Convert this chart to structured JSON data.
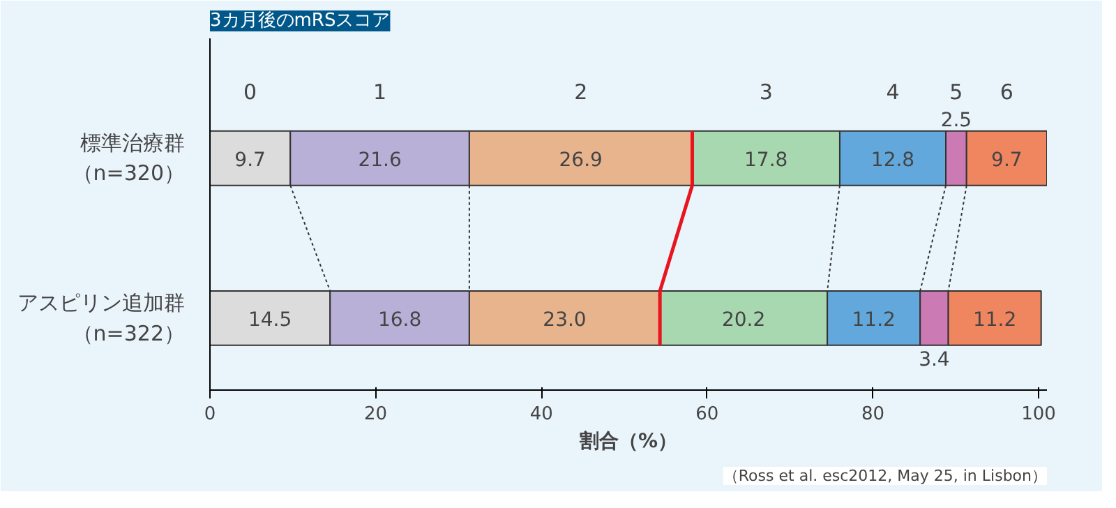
{
  "chart_data": {
    "type": "bar",
    "orientation": "horizontal",
    "stacked": true,
    "title": "3カ月後のmRSスコア",
    "xlabel": "割合（%）",
    "categories": [
      "標準治療群（n=320）",
      "アスピリン追加群（n=322）"
    ],
    "legend": false,
    "series": [
      {
        "name": "0",
        "color": "#dcdcdc",
        "values": [
          9.7,
          14.5
        ],
        "value_labels": [
          "9.7",
          "14.5"
        ]
      },
      {
        "name": "1",
        "color": "#b9b0d8",
        "values": [
          21.6,
          16.8
        ],
        "value_labels": [
          "21.6",
          "16.8"
        ]
      },
      {
        "name": "2",
        "color": "#e8b48e",
        "values": [
          26.9,
          23.0
        ],
        "value_labels": [
          "26.9",
          "23.0"
        ]
      },
      {
        "name": "3",
        "color": "#a8d8b0",
        "values": [
          17.8,
          20.2
        ],
        "value_labels": [
          "17.8",
          "20.2"
        ]
      },
      {
        "name": "4",
        "color": "#62a8dc",
        "values": [
          12.8,
          11.2
        ],
        "value_labels": [
          "12.8",
          "11.2"
        ]
      },
      {
        "name": "5",
        "color": "#cc7ab4",
        "values": [
          2.5,
          3.4
        ],
        "value_labels": [
          "2.5",
          "3.4"
        ]
      },
      {
        "name": "6",
        "color": "#f08660",
        "values": [
          9.7,
          11.2
        ],
        "value_labels": [
          "9.7",
          "11.2"
        ]
      }
    ],
    "xlim": [
      0,
      101
    ],
    "xticks": [
      0,
      20,
      40,
      60,
      80,
      100
    ],
    "grid": false,
    "annotations": [
      "（Ross et al. esc2012, May 25, in Lisbon）"
    ]
  }
}
